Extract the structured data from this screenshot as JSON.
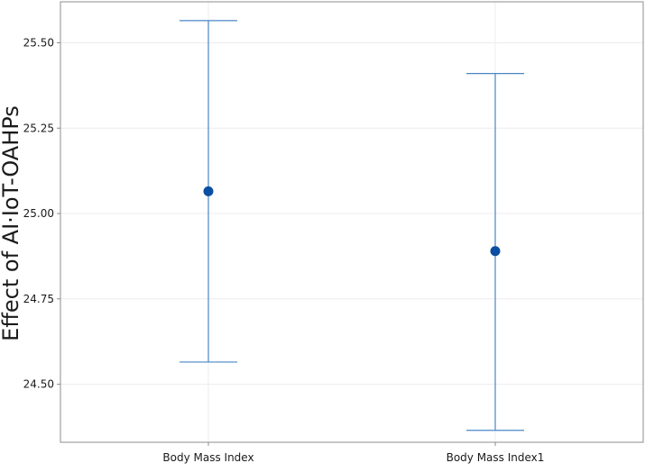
{
  "chart_data": {
    "type": "errorbar",
    "title": "",
    "xlabel": "",
    "ylabel": "Effect of AI·IoT-OAHPs",
    "categories": [
      "Body Mass Index",
      "Body Mass Index1"
    ],
    "series": [
      {
        "values": [
          25.065,
          24.89
        ],
        "lower": [
          24.565,
          24.365
        ],
        "upper": [
          25.565,
          25.41
        ]
      }
    ],
    "ylim": [
      24.33,
      25.62
    ],
    "yticks": [
      24.5,
      24.75,
      25.0,
      25.25,
      25.5
    ],
    "ytick_labels": [
      "24.50",
      "24.75",
      "25.00",
      "25.25",
      "25.50"
    ],
    "grid": true,
    "colors": {
      "errorbar": "#4a86c6",
      "point": "#0b4fa3",
      "grid": "#ececec",
      "frame": "#8c8c8c"
    }
  }
}
